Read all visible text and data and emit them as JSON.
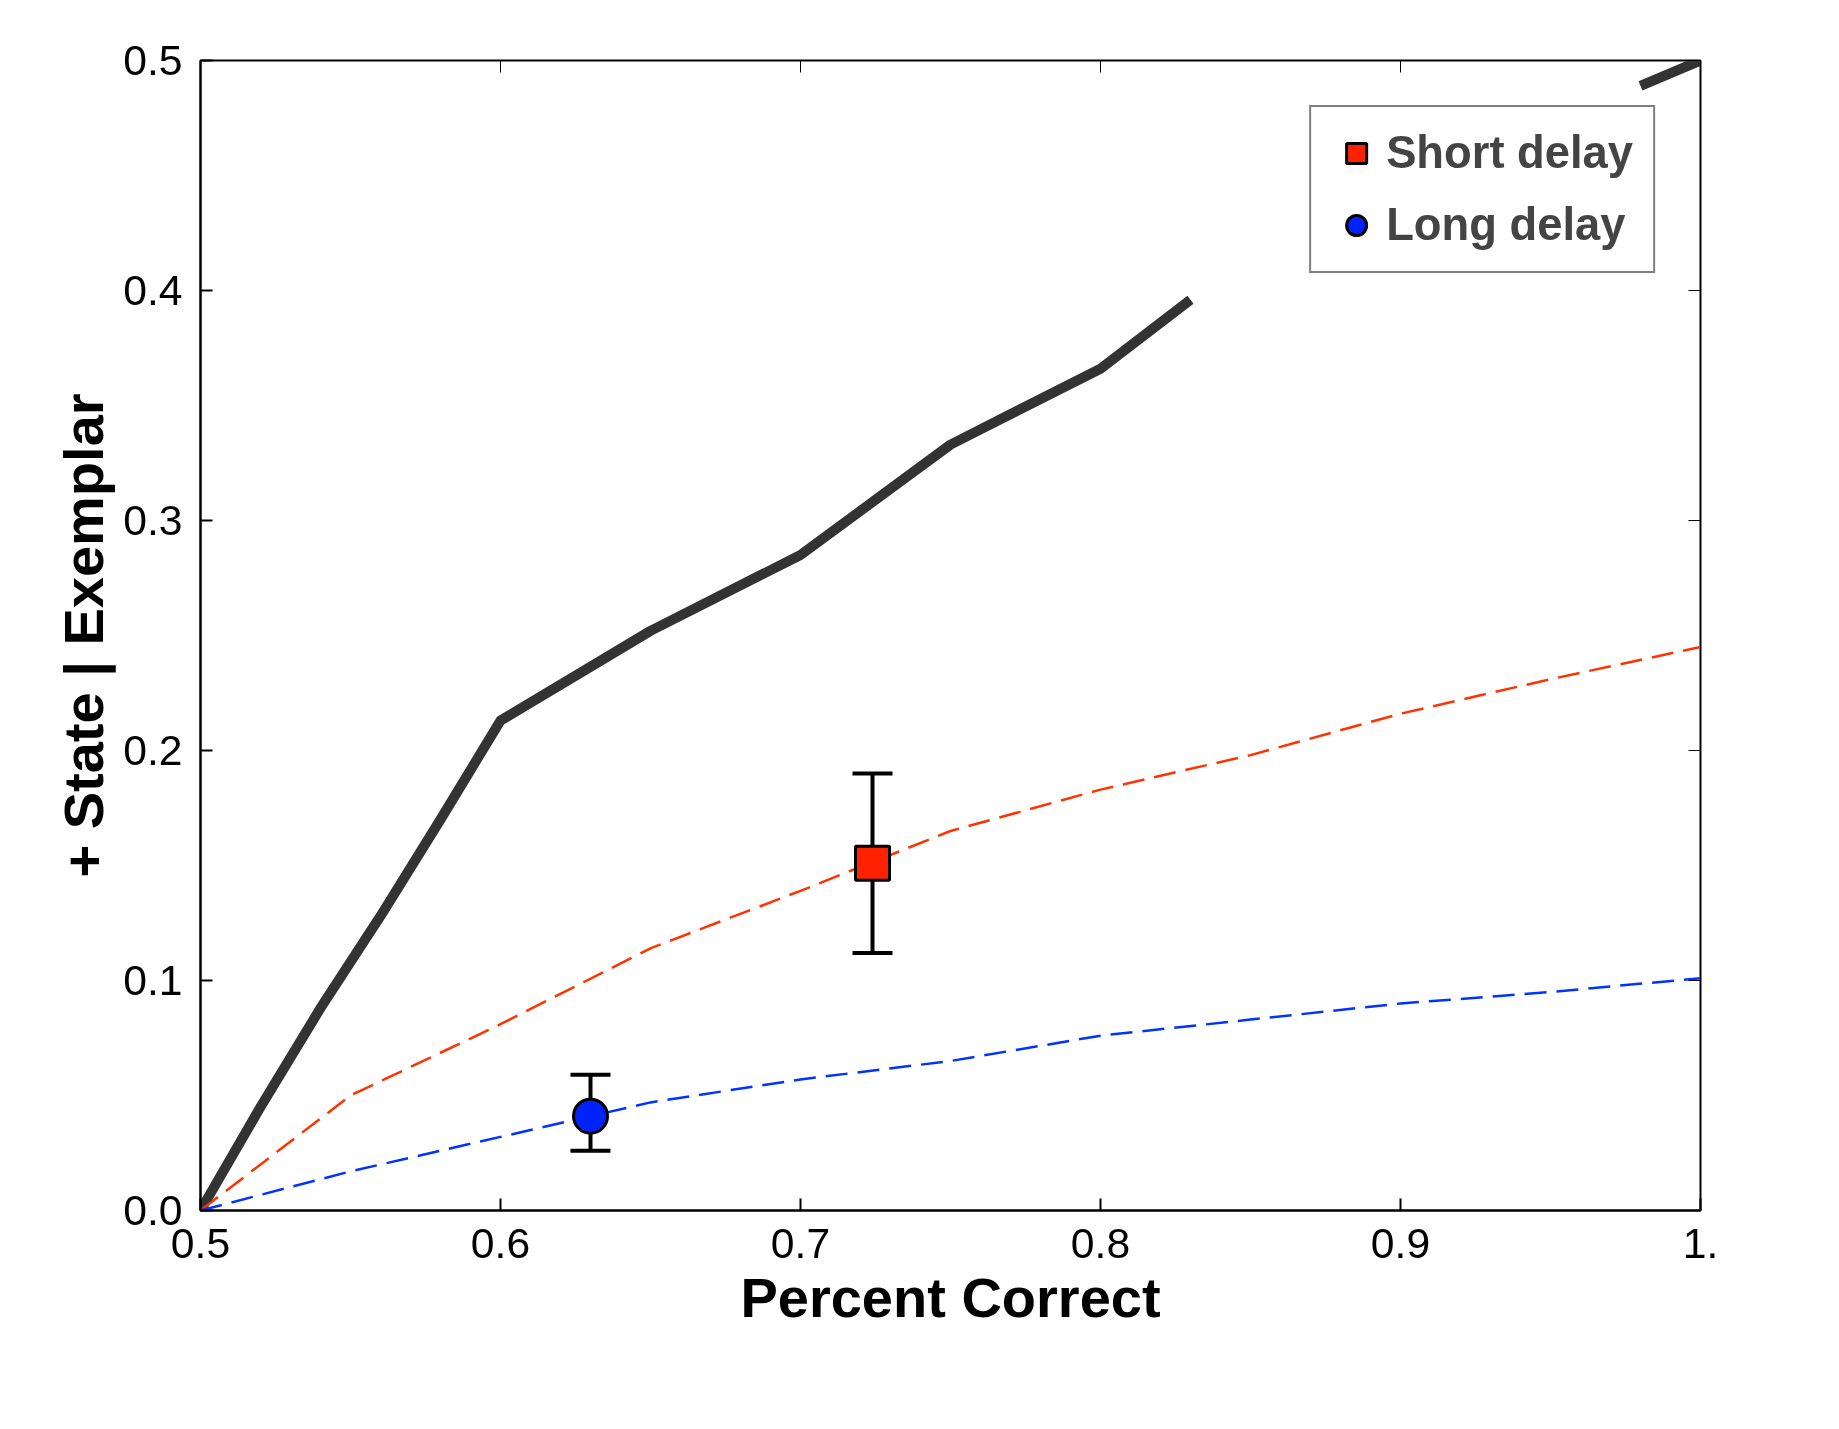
{
  "chart_data": {
    "type": "line",
    "xlabel": "Percent Correct",
    "ylabel": "+ State | Exemplar",
    "xlim": [
      0.5,
      1.0
    ],
    "ylim": [
      0.0,
      0.5
    ],
    "xticks": [
      {
        "value": 0.5,
        "label": "0.5"
      },
      {
        "value": 0.6,
        "label": "0.6"
      },
      {
        "value": 0.7,
        "label": "0.7"
      },
      {
        "value": 0.8,
        "label": "0.8"
      },
      {
        "value": 0.9,
        "label": "0.9"
      },
      {
        "value": 1.0,
        "label": "1."
      }
    ],
    "yticks": [
      {
        "value": 0.0,
        "label": "0.0"
      },
      {
        "value": 0.1,
        "label": "0.1"
      },
      {
        "value": 0.2,
        "label": "0.2"
      },
      {
        "value": 0.3,
        "label": "0.3"
      },
      {
        "value": 0.4,
        "label": "0.4"
      },
      {
        "value": 0.5,
        "label": "0.5"
      }
    ],
    "grid": false,
    "legend": "top right",
    "series": [
      {
        "color": "#333333",
        "line_style": "solid",
        "x": [
          0.5,
          0.52,
          0.54,
          0.56,
          0.58,
          0.6,
          0.65,
          0.7,
          0.75,
          0.8,
          0.83,
          0.9,
          0.98,
          1.0
        ],
        "values": [
          0.0,
          0.045,
          0.088,
          0.128,
          0.17,
          0.213,
          0.252,
          0.285,
          0.333,
          0.366,
          0.396,
          null,
          0.489,
          0.5
        ]
      },
      {
        "color": "#ff3300",
        "line_style": "dashed",
        "x": [
          0.5,
          0.55,
          0.6,
          0.65,
          0.7,
          0.75,
          0.8,
          0.85,
          0.9,
          0.95,
          1.0
        ],
        "values": [
          0.0,
          0.05,
          0.081,
          0.114,
          0.139,
          0.165,
          0.183,
          0.198,
          0.216,
          0.231,
          0.245
        ]
      },
      {
        "color": "#0033ff",
        "line_style": "dashed",
        "x": [
          0.5,
          0.55,
          0.6,
          0.65,
          0.7,
          0.75,
          0.8,
          0.85,
          0.9,
          0.95,
          1.0
        ],
        "values": [
          0.0,
          0.017,
          0.032,
          0.047,
          0.057,
          0.065,
          0.076,
          0.083,
          0.09,
          0.095,
          0.101
        ]
      },
      {
        "type": "scatter",
        "name": "Short delay",
        "color": "#ff2200",
        "marker": "square",
        "x": [
          0.724
        ],
        "values": [
          0.151
        ],
        "errors": [
          [
            0.112,
            0.19
          ]
        ]
      },
      {
        "type": "scatter",
        "name": "Long delay",
        "color": "#0022ff",
        "marker": "circle",
        "x": [
          0.63
        ],
        "values": [
          0.041
        ],
        "errors": [
          [
            0.026,
            0.059
          ]
        ]
      }
    ]
  }
}
